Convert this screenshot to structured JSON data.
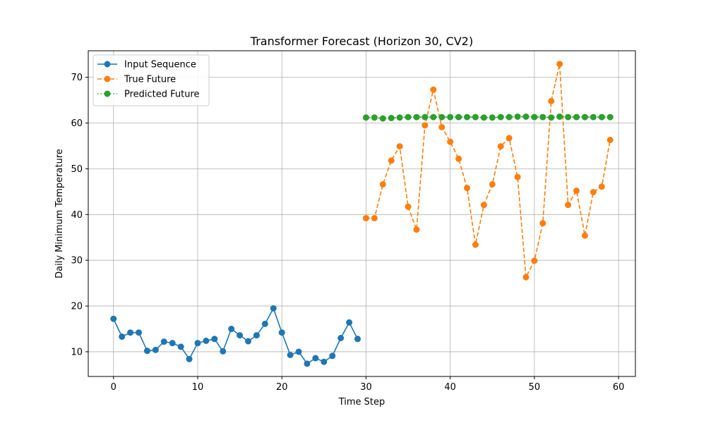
{
  "chart_data": {
    "type": "line",
    "title": "Transformer Forecast (Horizon 30, CV2)",
    "xlabel": "Time Step",
    "ylabel": "Daily Minimum Temperature",
    "xlim": [
      -3,
      62
    ],
    "ylim": [
      4.6,
      75.8
    ],
    "xticks": [
      "0",
      "10",
      "20",
      "30",
      "40",
      "50",
      "60"
    ],
    "yticks": [
      "10",
      "20",
      "30",
      "40",
      "50",
      "60",
      "70"
    ],
    "grid": true,
    "legend": "top-left",
    "series": [
      {
        "name": "Input Sequence",
        "color": "#1f77b4",
        "linestyle": "solid",
        "x": [
          0,
          1,
          2,
          3,
          4,
          5,
          6,
          7,
          8,
          9,
          10,
          11,
          12,
          13,
          14,
          15,
          16,
          17,
          18,
          19,
          20,
          21,
          22,
          23,
          24,
          25,
          26,
          27,
          28,
          29
        ],
        "values": [
          17.2,
          13.3,
          14.2,
          14.2,
          10.2,
          10.4,
          12.2,
          11.9,
          11.1,
          8.4,
          11.9,
          12.4,
          12.8,
          10.1,
          15.0,
          13.6,
          12.3,
          13.6,
          16.1,
          19.5,
          14.2,
          9.3,
          10.0,
          7.4,
          8.6,
          7.8,
          9.1,
          13.0,
          16.4,
          12.8
        ]
      },
      {
        "name": "True Future",
        "color": "#ff7f0e",
        "linestyle": "dashed",
        "x": [
          30,
          31,
          32,
          33,
          34,
          35,
          36,
          37,
          38,
          39,
          40,
          41,
          42,
          43,
          44,
          45,
          46,
          47,
          48,
          49,
          50,
          51,
          52,
          53,
          54,
          55,
          56,
          57,
          58,
          59
        ],
        "values": [
          39.2,
          39.2,
          46.6,
          51.8,
          54.9,
          41.7,
          36.7,
          59.5,
          67.3,
          59.1,
          55.9,
          52.2,
          45.8,
          33.4,
          42.1,
          46.6,
          54.9,
          56.7,
          48.2,
          26.3,
          29.9,
          38.1,
          64.8,
          72.9,
          42.1,
          45.2,
          35.4,
          44.9,
          46.1,
          56.3
        ]
      },
      {
        "name": "Predicted Future",
        "color": "#2ca02c",
        "linestyle": "dotted",
        "x": [
          30,
          31,
          32,
          33,
          34,
          35,
          36,
          37,
          38,
          39,
          40,
          41,
          42,
          43,
          44,
          45,
          46,
          47,
          48,
          49,
          50,
          51,
          52,
          53,
          54,
          55,
          56,
          57,
          58,
          59
        ],
        "values": [
          61.2,
          61.2,
          61.0,
          61.1,
          61.2,
          61.3,
          61.3,
          61.3,
          61.3,
          61.3,
          61.3,
          61.3,
          61.3,
          61.3,
          61.2,
          61.2,
          61.3,
          61.3,
          61.4,
          61.4,
          61.3,
          61.3,
          61.2,
          61.4,
          61.3,
          61.3,
          61.3,
          61.3,
          61.3,
          61.3
        ]
      }
    ]
  }
}
